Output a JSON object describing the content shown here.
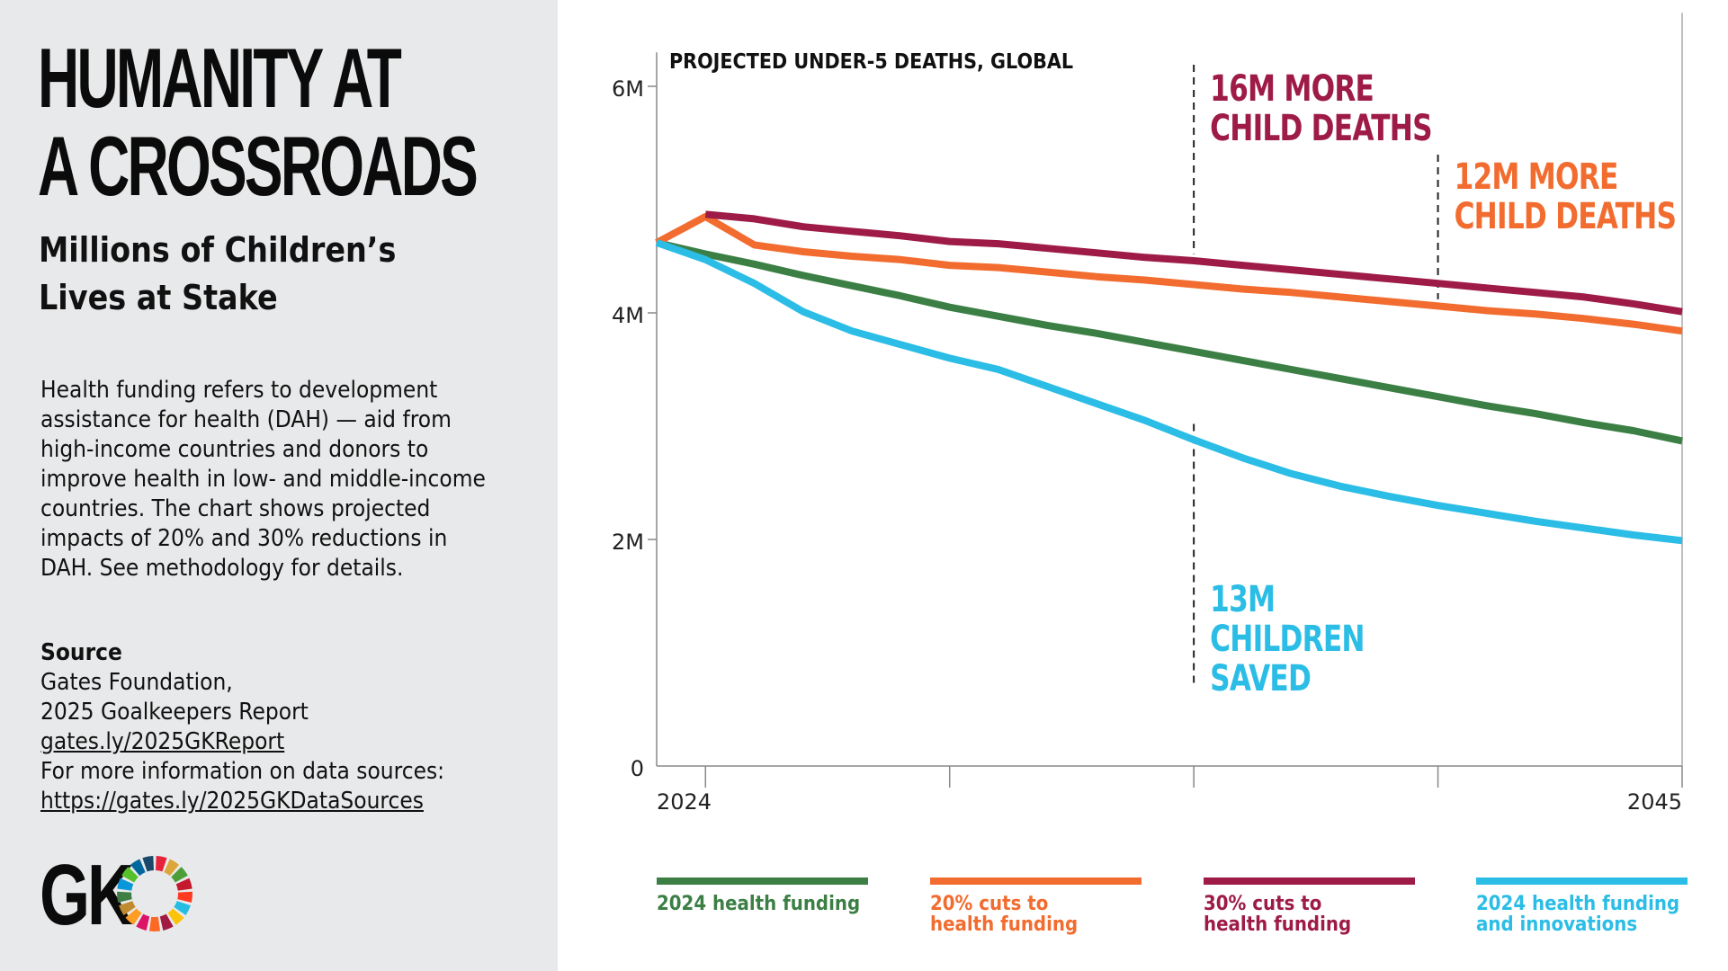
{
  "sidebar": {
    "headline": [
      "HUMANITY AT",
      "A CROSSROADS"
    ],
    "subhead": [
      "Millions of Children’s",
      "Lives at Stake"
    ],
    "description": [
      "Health funding refers to development",
      "assistance for health (DAH) — aid from",
      "high-income countries and donors to",
      "improve health in low- and middle-income",
      "countries. The chart shows projected",
      "impacts of 20% and 30% reductions in",
      "DAH. See methodology for details."
    ],
    "source_title": "Source",
    "source_lines": [
      "Gates Foundation,",
      "2025 Goalkeepers Report"
    ],
    "source_link": "gates.ly/2025GKReport",
    "more_info": "For more information on data sources:",
    "more_info_link": "https://gates.ly/2025GKDataSources",
    "logo_text": "GK",
    "logo_colors": [
      "#e5243b",
      "#dda63a",
      "#4c9f38",
      "#c5192d",
      "#ff3a21",
      "#26bde2",
      "#fcc30b",
      "#a21942",
      "#fd6925",
      "#dd1367",
      "#fd9d24",
      "#bf8b2e",
      "#3f7e44",
      "#0a97d9",
      "#56c02b",
      "#00689d",
      "#19486a"
    ]
  },
  "chart_data": {
    "type": "line",
    "title": "PROJECTED UNDER-5 DEATHS, GLOBAL",
    "xlim": [
      2024,
      2045
    ],
    "ylim": [
      0,
      6.3
    ],
    "x_tick_labels": [
      {
        "x": 2024,
        "label": "2024"
      },
      {
        "x": 2045,
        "label": "2045"
      }
    ],
    "x_tick_marks": [
      2025,
      2030,
      2035,
      2040,
      2045
    ],
    "y_ticks": [
      {
        "value": 0,
        "label": "0"
      },
      {
        "value": 2,
        "label": "2M"
      },
      {
        "value": 4,
        "label": "4M"
      },
      {
        "value": 6,
        "label": "6M"
      }
    ],
    "series": [
      {
        "name": "2024 health funding",
        "color": "#3c7f45",
        "x": [
          2024,
          2025,
          2026,
          2027,
          2028,
          2029,
          2030,
          2031,
          2032,
          2033,
          2034,
          2035,
          2036,
          2037,
          2038,
          2039,
          2040,
          2041,
          2042,
          2043,
          2044,
          2045
        ],
        "y": [
          4.62,
          4.52,
          4.43,
          4.33,
          4.24,
          4.15,
          4.05,
          3.97,
          3.89,
          3.82,
          3.74,
          3.66,
          3.58,
          3.5,
          3.42,
          3.34,
          3.26,
          3.18,
          3.11,
          3.03,
          2.96,
          2.87
        ]
      },
      {
        "name": "20% cuts to health funding",
        "color": "#f26c2f",
        "x": [
          2024,
          2025,
          2026,
          2027,
          2028,
          2029,
          2030,
          2031,
          2032,
          2033,
          2034,
          2035,
          2036,
          2037,
          2038,
          2039,
          2040,
          2041,
          2042,
          2043,
          2044,
          2045
        ],
        "y": [
          4.62,
          4.85,
          4.6,
          4.54,
          4.5,
          4.47,
          4.42,
          4.4,
          4.36,
          4.32,
          4.29,
          4.25,
          4.21,
          4.18,
          4.14,
          4.1,
          4.06,
          4.02,
          3.99,
          3.95,
          3.9,
          3.84
        ]
      },
      {
        "name": "30% cuts to health funding",
        "color": "#9e1b48",
        "x": [
          2025,
          2026,
          2027,
          2028,
          2029,
          2030,
          2031,
          2032,
          2033,
          2034,
          2035,
          2036,
          2037,
          2038,
          2039,
          2040,
          2041,
          2042,
          2043,
          2044,
          2045
        ],
        "y": [
          4.87,
          4.83,
          4.76,
          4.72,
          4.68,
          4.63,
          4.61,
          4.57,
          4.53,
          4.49,
          4.46,
          4.42,
          4.38,
          4.34,
          4.3,
          4.26,
          4.22,
          4.18,
          4.14,
          4.08,
          4.01
        ]
      },
      {
        "name": "2024 health funding and innovations",
        "color": "#2bbde6",
        "x": [
          2024,
          2025,
          2026,
          2027,
          2028,
          2029,
          2030,
          2031,
          2032,
          2033,
          2034,
          2035,
          2036,
          2037,
          2038,
          2039,
          2040,
          2041,
          2042,
          2043,
          2044,
          2045
        ],
        "y": [
          4.62,
          4.47,
          4.26,
          4.01,
          3.84,
          3.72,
          3.6,
          3.5,
          3.35,
          3.2,
          3.05,
          2.88,
          2.72,
          2.58,
          2.47,
          2.38,
          2.3,
          2.23,
          2.16,
          2.1,
          2.04,
          1.99
        ]
      }
    ],
    "annotations": [
      {
        "lines": [
          "16M MORE",
          "CHILD DEATHS"
        ],
        "color": "#9e1b48",
        "x": 2035
      },
      {
        "lines": [
          "12M MORE",
          "CHILD DEATHS"
        ],
        "color": "#f26c2f",
        "x": 2040
      },
      {
        "lines": [
          "13M",
          "CHILDREN",
          "SAVED"
        ],
        "color": "#2bbde6",
        "x": 2035
      }
    ],
    "legend": [
      {
        "lines": [
          "2024 health funding"
        ],
        "color": "#3c7f45"
      },
      {
        "lines": [
          "20% cuts to",
          "health funding"
        ],
        "color": "#f26c2f"
      },
      {
        "lines": [
          "30% cuts to",
          "health funding"
        ],
        "color": "#9e1b48"
      },
      {
        "lines": [
          "2024 health funding",
          "and innovations"
        ],
        "color": "#2bbde6"
      }
    ]
  }
}
